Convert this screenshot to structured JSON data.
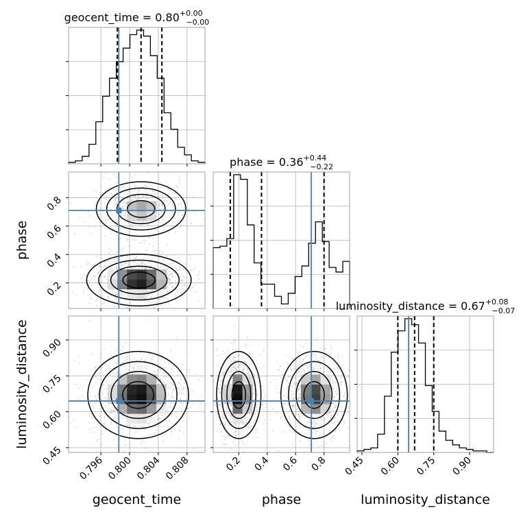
{
  "chart_data": {
    "type": "corner",
    "parameters": [
      "geocent_time",
      "phase",
      "luminosity_distance"
    ],
    "injection": {
      "geocent_time": 0.7985,
      "phase": 0.71,
      "luminosity_distance": 0.645
    },
    "ranges": {
      "geocent_time": [
        0.7915,
        0.8105
      ],
      "phase": [
        0.02,
        0.98
      ],
      "luminosity_distance": [
        0.43,
        1.0
      ]
    },
    "xlabels": [
      "geocent_time",
      "phase",
      "luminosity_distance"
    ],
    "ylabels": [
      "",
      "phase",
      "luminosity_distance"
    ],
    "titles": [
      {
        "param": "geocent_time",
        "text": "geocent_time = 0.80",
        "plus": "+0.00",
        "minus": "−0.00"
      },
      {
        "param": "phase",
        "text": "phase = 0.36",
        "plus": "+0.44",
        "minus": "−0.22"
      },
      {
        "param": "luminosity_distance",
        "text": "luminosity_distance = 0.67",
        "plus": "+0.08",
        "minus": "−0.07"
      }
    ],
    "ticks": {
      "geocent_time": {
        "values": [
          0.796,
          0.8,
          0.804,
          0.808
        ],
        "labels": [
          "0.796",
          "0.800",
          "0.804",
          "0.808"
        ]
      },
      "phase_x": {
        "values": [
          0.2,
          0.4,
          0.6,
          0.8
        ],
        "labels": [
          "0.2",
          "0.4",
          "0.6",
          "0.8"
        ]
      },
      "phase_y": {
        "values": [
          0.2,
          0.4,
          0.6,
          0.8
        ],
        "labels": [
          "0.2",
          "0.4",
          "0.6",
          "0.8"
        ]
      },
      "luminosity_distance": {
        "values": [
          0.45,
          0.6,
          0.75,
          0.9
        ],
        "labels": [
          "0.45",
          "0.60",
          "0.75",
          "0.90"
        ]
      }
    },
    "quantiles": {
      "geocent_time": [
        0.7983,
        0.8016,
        0.8045
      ],
      "phase": [
        0.14,
        0.36,
        0.8
      ],
      "luminosity_distance": [
        0.6,
        0.67,
        0.75
      ]
    },
    "histograms": {
      "geocent_time": {
        "edges": [
          0.7915,
          0.79245,
          0.7934,
          0.79435,
          0.7953,
          0.79625,
          0.7972,
          0.79815,
          0.7991,
          0.80005,
          0.801,
          0.80195,
          0.8029,
          0.80385,
          0.8048,
          0.80575,
          0.8067,
          0.80765,
          0.8086,
          0.80955,
          0.8105
        ],
        "counts": [
          1,
          2,
          5,
          13,
          28,
          45,
          57,
          68,
          77,
          86,
          89,
          85,
          72,
          57,
          34,
          23,
          11,
          6,
          2,
          1
        ]
      },
      "phase": {
        "edges": [
          0.02,
          0.068,
          0.116,
          0.164,
          0.212,
          0.26,
          0.308,
          0.356,
          0.404,
          0.452,
          0.5,
          0.548,
          0.596,
          0.644,
          0.692,
          0.74,
          0.788,
          0.836,
          0.884,
          0.932,
          0.98
        ],
        "counts": [
          40,
          41,
          46,
          88,
          85,
          55,
          30,
          16,
          16,
          8,
          3,
          10,
          21,
          28,
          43,
          57,
          44,
          27,
          24,
          31
        ]
      },
      "luminosity_distance": {
        "edges": [
          0.43,
          0.4585,
          0.487,
          0.5155,
          0.544,
          0.5725,
          0.601,
          0.6295,
          0.658,
          0.6865,
          0.715,
          0.7435,
          0.772,
          0.8005,
          0.829,
          0.8575,
          0.886,
          0.9145,
          0.943,
          0.9715,
          1.0
        ],
        "counts": [
          1,
          2,
          3,
          12,
          37,
          66,
          80,
          88,
          84,
          72,
          44,
          27,
          14,
          8,
          5,
          3,
          2,
          1,
          1,
          0
        ]
      }
    },
    "contours_2d": [
      {
        "x": "geocent_time",
        "y": "phase",
        "modes": [
          {
            "x": 0.8013,
            "y": 0.22,
            "sx": 0.0028,
            "sy": 0.07,
            "w": 1.0
          },
          {
            "x": 0.8016,
            "y": 0.72,
            "sx": 0.0026,
            "sy": 0.08,
            "w": 0.55
          }
        ]
      },
      {
        "x": "geocent_time",
        "y": "luminosity_distance",
        "modes": [
          {
            "x": 0.8012,
            "y": 0.67,
            "sx": 0.0027,
            "sy": 0.07,
            "w": 1.0
          }
        ]
      },
      {
        "x": "phase",
        "y": "luminosity_distance",
        "modes": [
          {
            "x": 0.2,
            "y": 0.67,
            "sx": 0.06,
            "sy": 0.07,
            "w": 1.0
          },
          {
            "x": 0.73,
            "y": 0.67,
            "sx": 0.09,
            "sy": 0.07,
            "w": 0.85
          }
        ]
      }
    ],
    "colors": {
      "truth": "#4682b4",
      "hist": "#000000",
      "grid": "#b0b0b0",
      "points": "#9e9e9e"
    },
    "grid": true
  }
}
